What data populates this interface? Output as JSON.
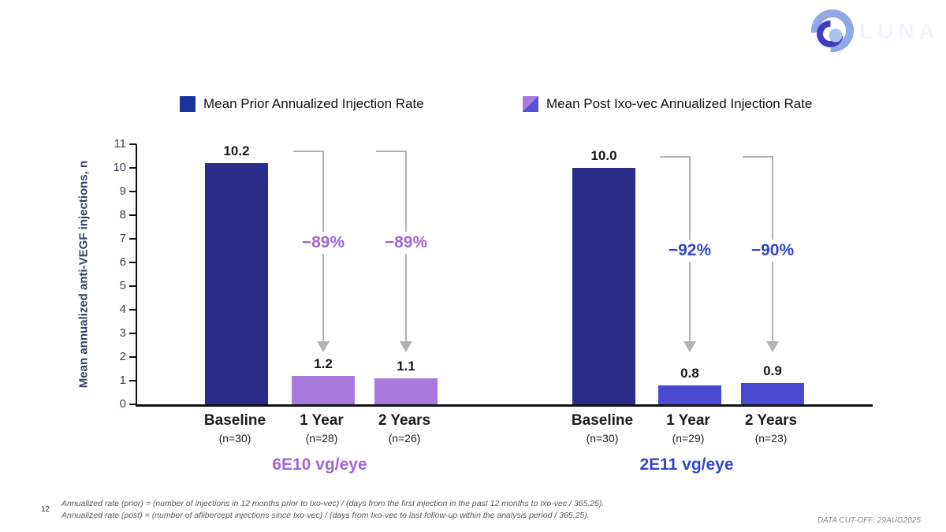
{
  "logo": {
    "wordmark": "LUNA"
  },
  "footer": {
    "page_number": "12",
    "footnote_line1": "Annualized rate (prior) = (number of injections in 12 months prior to Ixo-vec) / (days from the first injection in the past 12 months to Ixo-vec / 365.25).",
    "footnote_line2": "Annualized rate (post) = (number of aflibercept injections since Ixo-vec) / (days from Ixo-vec to last follow-up within the analysis period / 365.25).",
    "data_cutoff": "DATA CUT-OFF: 29AUG2025"
  },
  "chart_data": {
    "type": "bar",
    "ylabel": "Mean annualized anti-VEGF injections, n",
    "ylim": [
      0,
      11
    ],
    "yticks": [
      0,
      1,
      2,
      3,
      4,
      5,
      6,
      7,
      8,
      9,
      10,
      11
    ],
    "grid": false,
    "legend_position": "top",
    "legend": [
      {
        "label": "Mean Prior Annualized Injection Rate",
        "color": "#1c3399"
      },
      {
        "label": "Mean Post Ixo-vec Annualized Injection Rate",
        "colors": [
          "#a97ade",
          "#5552d8"
        ]
      }
    ],
    "groups": [
      {
        "name": "6E10 vg/eye",
        "name_color": "#a365d6",
        "change_color": "#a365d6",
        "bars": [
          {
            "label": "Baseline",
            "sub": "(n=30)",
            "value": 10.2,
            "display": "10.2",
            "color": "#2b2b8a"
          },
          {
            "label": "1 Year",
            "sub": "(n=28)",
            "value": 1.2,
            "display": "1.2",
            "color": "#a97ade",
            "change": "−89%"
          },
          {
            "label": "2 Years",
            "sub": "(n=26)",
            "value": 1.1,
            "display": "1.1",
            "color": "#a97ade",
            "change": "−89%"
          }
        ]
      },
      {
        "name": "2E11 vg/eye",
        "name_color": "#3347c4",
        "change_color": "#3347c4",
        "bars": [
          {
            "label": "Baseline",
            "sub": "(n=30)",
            "value": 10.0,
            "display": "10.0",
            "color": "#2b2b8a"
          },
          {
            "label": "1 Year",
            "sub": "(n=29)",
            "value": 0.8,
            "display": "0.8",
            "color": "#484bd0",
            "change": "−92%"
          },
          {
            "label": "2 Years",
            "sub": "(n=23)",
            "value": 0.9,
            "display": "0.9",
            "color": "#484bd0",
            "change": "−90%"
          }
        ]
      }
    ]
  }
}
